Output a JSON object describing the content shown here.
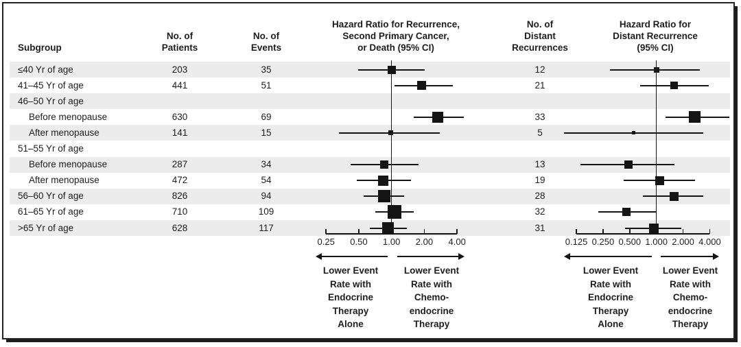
{
  "figure": {
    "columns": {
      "subgroup": "Subgroup",
      "patients": "No. of\nPatients",
      "events": "No. of\nEvents",
      "distant": "No. of\nDistant\nRecurrences"
    },
    "plot1_title": "Hazard Ratio for Recurrence,\nSecond Primary Cancer,\nor Death (95% CI)",
    "plot2_title": "Hazard Ratio for\nDistant Recurrence\n(95% CI)",
    "band_color": "#ececec",
    "ink_color": "#141414"
  },
  "rows": [
    {
      "label": "≤40 Yr of age",
      "indent": false,
      "group_header": false,
      "patients": "203",
      "events": "35",
      "distant": "12",
      "shaded": true
    },
    {
      "label": "41–45 Yr of age",
      "indent": false,
      "group_header": false,
      "patients": "441",
      "events": "51",
      "distant": "21",
      "shaded": false
    },
    {
      "label": "46–50 Yr of age",
      "indent": false,
      "group_header": true,
      "patients": "",
      "events": "",
      "distant": "",
      "shaded": true
    },
    {
      "label": "Before menopause",
      "indent": true,
      "group_header": false,
      "patients": "630",
      "events": "69",
      "distant": "33",
      "shaded": false
    },
    {
      "label": "After menopause",
      "indent": true,
      "group_header": false,
      "patients": "141",
      "events": "15",
      "distant": "5",
      "shaded": true
    },
    {
      "label": "51–55 Yr of age",
      "indent": false,
      "group_header": true,
      "patients": "",
      "events": "",
      "distant": "",
      "shaded": false
    },
    {
      "label": "Before menopause",
      "indent": true,
      "group_header": false,
      "patients": "287",
      "events": "34",
      "distant": "13",
      "shaded": true
    },
    {
      "label": "After menopause",
      "indent": true,
      "group_header": false,
      "patients": "472",
      "events": "54",
      "distant": "19",
      "shaded": false
    },
    {
      "label": "56–60 Yr of age",
      "indent": false,
      "group_header": false,
      "patients": "826",
      "events": "94",
      "distant": "28",
      "shaded": true
    },
    {
      "label": "61–65 Yr of age",
      "indent": false,
      "group_header": false,
      "patients": "710",
      "events": "109",
      "distant": "32",
      "shaded": false
    },
    {
      "label": ">65 Yr of age",
      "indent": false,
      "group_header": false,
      "patients": "628",
      "events": "117",
      "distant": "31",
      "shaded": true
    }
  ],
  "chart_data": [
    {
      "type": "forest",
      "title": "Hazard Ratio for Recurrence, Second Primary Cancer, or Death (95% CI)",
      "scale": "log2",
      "xlim": [
        0.25,
        4.0
      ],
      "reference_line": 1.0,
      "ticks": {
        "values": [
          0.25,
          0.5,
          1.0,
          2.0,
          4.0
        ],
        "labels": [
          "0.25",
          "0.50",
          "1.00",
          "2.00",
          "4.00"
        ]
      },
      "arrow_left_label": "Lower Event\nRate with\nEndocrine\nTherapy\nAlone",
      "arrow_right_label": "Lower Event\nRate with\nChemo-\nendocrine\nTherapy",
      "points": [
        {
          "row": 0,
          "subgroup": "≤40 Yr of age",
          "est": 1.0,
          "lo": 0.49,
          "hi": 2.01,
          "size": 12
        },
        {
          "row": 1,
          "subgroup": "41–45 Yr of age",
          "est": 1.9,
          "lo": 1.06,
          "hi": 3.65,
          "size": 13
        },
        {
          "row": 3,
          "subgroup": "46–50 Yr of age, before menopause",
          "est": 2.66,
          "lo": 1.59,
          "hi": 4.6,
          "size": 16
        },
        {
          "row": 4,
          "subgroup": "46–50 Yr of age, after menopause",
          "est": 0.98,
          "lo": 0.33,
          "hi": 2.76,
          "size": 7
        },
        {
          "row": 6,
          "subgroup": "51–55 Yr of age, before menopause",
          "est": 0.86,
          "lo": 0.42,
          "hi": 1.77,
          "size": 12
        },
        {
          "row": 7,
          "subgroup": "51–55 Yr of age, after menopause",
          "est": 0.84,
          "lo": 0.48,
          "hi": 1.51,
          "size": 15
        },
        {
          "row": 8,
          "subgroup": "56–60 Yr of age",
          "est": 0.85,
          "lo": 0.55,
          "hi": 1.31,
          "size": 18
        },
        {
          "row": 9,
          "subgroup": "61–65 Yr of age",
          "est": 1.06,
          "lo": 0.71,
          "hi": 1.59,
          "size": 20
        },
        {
          "row": 10,
          "subgroup": ">65 Yr of age",
          "est": 0.93,
          "lo": 0.63,
          "hi": 1.39,
          "size": 17
        }
      ]
    },
    {
      "type": "forest",
      "title": "Hazard Ratio for Distant Recurrence (95% CI)",
      "scale": "log2",
      "xlim": [
        0.125,
        4.0
      ],
      "reference_line": 1.0,
      "ticks": {
        "values": [
          0.125,
          0.25,
          0.5,
          1.0,
          2.0,
          4.0
        ],
        "labels": [
          "0.125",
          "0.250",
          "0.500",
          "1.000",
          "2.000",
          "4.000"
        ]
      },
      "arrow_left_label": "Lower Event\nRate with\nEndocrine\nTherapy\nAlone",
      "arrow_right_label": "Lower Event\nRate with\nChemo-\nendocrine\nTherapy",
      "points": [
        {
          "row": 0,
          "subgroup": "≤40 Yr of age",
          "est": 1.0,
          "lo": 0.3,
          "hi": 3.09,
          "size": 8
        },
        {
          "row": 1,
          "subgroup": "41–45 Yr of age",
          "est": 1.59,
          "lo": 0.65,
          "hi": 3.92,
          "size": 11
        },
        {
          "row": 3,
          "subgroup": "46–50 Yr of age, before menopause",
          "est": 2.69,
          "lo": 1.27,
          "hi": 6.6,
          "size": 17
        },
        {
          "row": 4,
          "subgroup": "46–50 Yr of age, after menopause",
          "est": 0.55,
          "lo": 0.09,
          "hi": 3.38,
          "size": 5
        },
        {
          "row": 6,
          "subgroup": "51–55 Yr of age, before menopause",
          "est": 0.48,
          "lo": 0.14,
          "hi": 1.59,
          "size": 12
        },
        {
          "row": 7,
          "subgroup": "51–55 Yr of age, after menopause",
          "est": 1.09,
          "lo": 0.43,
          "hi": 2.71,
          "size": 13
        },
        {
          "row": 8,
          "subgroup": "56–60 Yr of age",
          "est": 1.59,
          "lo": 0.7,
          "hi": 3.38,
          "size": 13
        },
        {
          "row": 9,
          "subgroup": "61–65 Yr of age",
          "est": 0.46,
          "lo": 0.22,
          "hi": 1.0,
          "size": 12
        },
        {
          "row": 10,
          "subgroup": ">65 Yr of age",
          "est": 0.93,
          "lo": 0.44,
          "hi": 1.92,
          "size": 14
        }
      ]
    }
  ]
}
